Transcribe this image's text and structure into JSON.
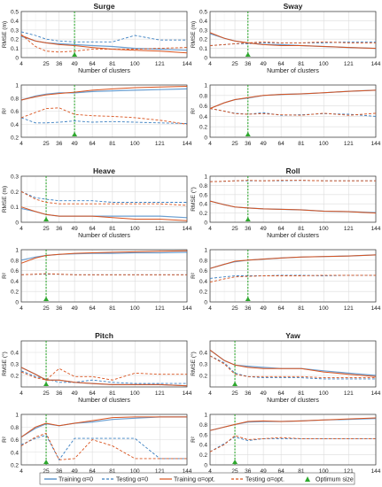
{
  "figure": {
    "xlabel": "Number of clusters",
    "xticks": [
      4,
      25,
      36,
      49,
      64,
      81,
      100,
      121,
      144
    ],
    "legend": [
      {
        "label": "Training α=0",
        "color": "#3a7fc1",
        "style": "solid"
      },
      {
        "label": "Testing α=0",
        "color": "#3a7fc1",
        "style": "dashed"
      },
      {
        "label": "Training α=opt.",
        "color": "#d9531e",
        "style": "solid"
      },
      {
        "label": "Testing α=opt.",
        "color": "#d9531e",
        "style": "dashed"
      },
      {
        "label": "Optimum size",
        "color": "#2ea82e",
        "style": "marker"
      }
    ],
    "colors": {
      "alpha0": "#3a7fc1",
      "alphaopt": "#d9531e",
      "optimum": "#2ea82e",
      "grid": "#e6e6e6"
    }
  },
  "chart_data": [
    {
      "type": "line",
      "title": "Surge",
      "ylabel": "RMSE (m)",
      "ylim": [
        0,
        0.5
      ],
      "yticks": [
        "0",
        "0.1",
        "0.2",
        "0.3",
        "0.4",
        "0.5"
      ],
      "optimum": 49,
      "x": [
        4,
        16,
        25,
        36,
        49,
        64,
        81,
        100,
        121,
        144
      ],
      "series": [
        {
          "name": "Training α=0",
          "values": [
            0.23,
            0.18,
            0.16,
            0.15,
            0.14,
            0.13,
            0.12,
            0.1,
            0.09,
            0.08
          ]
        },
        {
          "name": "Testing α=0",
          "values": [
            0.28,
            0.24,
            0.2,
            0.18,
            0.17,
            0.17,
            0.17,
            0.24,
            0.19,
            0.19
          ]
        },
        {
          "name": "Training α=opt.",
          "values": [
            0.24,
            0.18,
            0.16,
            0.14,
            0.13,
            0.11,
            0.09,
            0.08,
            0.07,
            0.05
          ]
        },
        {
          "name": "Testing α=opt.",
          "values": [
            0.25,
            0.12,
            0.07,
            0.06,
            0.07,
            0.09,
            0.09,
            0.09,
            0.1,
            0.11
          ]
        }
      ]
    },
    {
      "type": "line",
      "title": "Sway",
      "ylabel": "RMSE (m)",
      "ylim": [
        0,
        0.5
      ],
      "yticks": [
        "0",
        "0.1",
        "0.2",
        "0.3",
        "0.4",
        "0.5"
      ],
      "optimum": 36,
      "x": [
        4,
        16,
        25,
        36,
        49,
        64,
        81,
        100,
        121,
        144
      ],
      "series": [
        {
          "name": "Training α=0",
          "values": [
            0.26,
            0.21,
            0.18,
            0.16,
            0.14,
            0.14,
            0.13,
            0.12,
            0.11,
            0.1
          ]
        },
        {
          "name": "Testing α=0",
          "values": [
            0.13,
            0.14,
            0.15,
            0.15,
            0.16,
            0.16,
            0.16,
            0.16,
            0.17,
            0.17
          ]
        },
        {
          "name": "Training α=opt.",
          "values": [
            0.27,
            0.21,
            0.18,
            0.16,
            0.14,
            0.13,
            0.13,
            0.12,
            0.11,
            0.1
          ]
        },
        {
          "name": "Testing α=opt.",
          "values": [
            0.13,
            0.14,
            0.15,
            0.16,
            0.17,
            0.16,
            0.16,
            0.17,
            0.16,
            0.16
          ]
        }
      ]
    },
    {
      "type": "line",
      "title": "",
      "ylabel": "R²",
      "ylim": [
        0.2,
        1.0
      ],
      "yticks": [
        "0.2",
        "0.4",
        "0.6",
        "0.8",
        "1"
      ],
      "optimum": 49,
      "x": [
        4,
        16,
        25,
        36,
        49,
        64,
        81,
        100,
        121,
        144
      ],
      "series": [
        {
          "name": "Training α=0",
          "values": [
            0.77,
            0.83,
            0.86,
            0.88,
            0.88,
            0.9,
            0.91,
            0.92,
            0.93,
            0.94
          ]
        },
        {
          "name": "Testing α=0",
          "values": [
            0.5,
            0.42,
            0.42,
            0.43,
            0.45,
            0.43,
            0.44,
            0.43,
            0.42,
            0.41
          ]
        },
        {
          "name": "Training α=opt.",
          "values": [
            0.77,
            0.82,
            0.85,
            0.87,
            0.89,
            0.92,
            0.94,
            0.96,
            0.97,
            0.98
          ]
        },
        {
          "name": "Testing α=opt.",
          "values": [
            0.5,
            0.58,
            0.64,
            0.65,
            0.55,
            0.53,
            0.52,
            0.5,
            0.46,
            0.4
          ]
        }
      ]
    },
    {
      "type": "line",
      "title": "",
      "ylabel": "R²",
      "ylim": [
        0,
        1.0
      ],
      "yticks": [
        "0",
        "0.2",
        "0.4",
        "0.6",
        "0.8",
        "1"
      ],
      "optimum": 36,
      "x": [
        4,
        16,
        25,
        36,
        49,
        64,
        81,
        100,
        121,
        144
      ],
      "series": [
        {
          "name": "Training α=0",
          "values": [
            0.55,
            0.66,
            0.72,
            0.75,
            0.8,
            0.82,
            0.83,
            0.85,
            0.88,
            0.9
          ]
        },
        {
          "name": "Testing α=0",
          "values": [
            0.55,
            0.5,
            0.46,
            0.44,
            0.47,
            0.42,
            0.43,
            0.45,
            0.44,
            0.4
          ]
        },
        {
          "name": "Training α=opt.",
          "values": [
            0.55,
            0.66,
            0.72,
            0.76,
            0.8,
            0.82,
            0.83,
            0.85,
            0.88,
            0.9
          ]
        },
        {
          "name": "Testing α=opt.",
          "values": [
            0.55,
            0.5,
            0.45,
            0.44,
            0.45,
            0.43,
            0.42,
            0.46,
            0.42,
            0.46
          ]
        }
      ]
    },
    {
      "type": "line",
      "title": "Heave",
      "ylabel": "RMSE (m)",
      "ylim": [
        0,
        0.3
      ],
      "yticks": [
        "0",
        "0.1",
        "0.2",
        "0.3"
      ],
      "optimum": 25,
      "x": [
        4,
        16,
        25,
        36,
        49,
        64,
        81,
        100,
        121,
        144
      ],
      "series": [
        {
          "name": "Training α=0",
          "values": [
            0.09,
            0.07,
            0.05,
            0.04,
            0.04,
            0.04,
            0.04,
            0.04,
            0.04,
            0.03
          ]
        },
        {
          "name": "Testing α=0",
          "values": [
            0.2,
            0.16,
            0.15,
            0.14,
            0.14,
            0.14,
            0.13,
            0.13,
            0.13,
            0.13
          ]
        },
        {
          "name": "Training α=opt.",
          "values": [
            0.1,
            0.07,
            0.05,
            0.04,
            0.04,
            0.04,
            0.03,
            0.02,
            0.02,
            0.01
          ]
        },
        {
          "name": "Testing α=opt.",
          "values": [
            0.2,
            0.15,
            0.13,
            0.12,
            0.12,
            0.12,
            0.12,
            0.12,
            0.12,
            0.11
          ]
        }
      ]
    },
    {
      "type": "line",
      "title": "Roll",
      "ylabel": "RMSE (°)",
      "ylim": [
        0,
        1.0
      ],
      "yticks": [
        "0",
        "0.2",
        "0.4",
        "0.6",
        "0.8",
        "1"
      ],
      "optimum": 36,
      "x": [
        4,
        16,
        25,
        36,
        49,
        64,
        81,
        100,
        121,
        144
      ],
      "series": [
        {
          "name": "Training α=0",
          "values": [
            0.46,
            0.38,
            0.33,
            0.31,
            0.29,
            0.28,
            0.27,
            0.24,
            0.23,
            0.21
          ]
        },
        {
          "name": "Testing α=0",
          "values": [
            0.88,
            0.89,
            0.9,
            0.9,
            0.9,
            0.9,
            0.91,
            0.9,
            0.9,
            0.9
          ]
        },
        {
          "name": "Training α=opt.",
          "values": [
            0.46,
            0.38,
            0.33,
            0.31,
            0.29,
            0.28,
            0.27,
            0.24,
            0.23,
            0.2
          ]
        },
        {
          "name": "Testing α=opt.",
          "values": [
            0.88,
            0.89,
            0.9,
            0.91,
            0.9,
            0.91,
            0.91,
            0.9,
            0.9,
            0.9
          ]
        }
      ]
    },
    {
      "type": "line",
      "title": "",
      "ylabel": "R²",
      "ylim": [
        0,
        1.0
      ],
      "yticks": [
        "0",
        "0.2",
        "0.4",
        "0.6",
        "0.8",
        "1"
      ],
      "optimum": 25,
      "x": [
        4,
        16,
        25,
        36,
        49,
        64,
        81,
        100,
        121,
        144
      ],
      "series": [
        {
          "name": "Training α=0",
          "values": [
            0.8,
            0.86,
            0.89,
            0.91,
            0.92,
            0.93,
            0.93,
            0.94,
            0.94,
            0.95
          ]
        },
        {
          "name": "Testing α=0",
          "values": [
            0.52,
            0.53,
            0.53,
            0.53,
            0.52,
            0.52,
            0.52,
            0.52,
            0.52,
            0.52
          ]
        },
        {
          "name": "Training α=opt.",
          "values": [
            0.74,
            0.84,
            0.89,
            0.91,
            0.93,
            0.94,
            0.95,
            0.96,
            0.97,
            0.98
          ]
        },
        {
          "name": "Testing α=opt.",
          "values": [
            0.52,
            0.53,
            0.54,
            0.53,
            0.52,
            0.52,
            0.52,
            0.52,
            0.52,
            0.52
          ]
        }
      ]
    },
    {
      "type": "line",
      "title": "",
      "ylabel": "R²",
      "ylim": [
        0,
        1.0
      ],
      "yticks": [
        "0",
        "0.2",
        "0.4",
        "0.6",
        "0.8",
        "1"
      ],
      "optimum": 36,
      "x": [
        4,
        16,
        25,
        36,
        49,
        64,
        81,
        100,
        121,
        144
      ],
      "series": [
        {
          "name": "Training α=0",
          "values": [
            0.64,
            0.72,
            0.77,
            0.8,
            0.82,
            0.84,
            0.86,
            0.87,
            0.88,
            0.9
          ]
        },
        {
          "name": "Testing α=0",
          "values": [
            0.45,
            0.48,
            0.5,
            0.5,
            0.5,
            0.51,
            0.51,
            0.5,
            0.51,
            0.51
          ]
        },
        {
          "name": "Training α=opt.",
          "values": [
            0.64,
            0.72,
            0.78,
            0.8,
            0.82,
            0.84,
            0.86,
            0.87,
            0.88,
            0.9
          ]
        },
        {
          "name": "Testing α=opt.",
          "values": [
            0.38,
            0.44,
            0.48,
            0.49,
            0.5,
            0.5,
            0.5,
            0.51,
            0.51,
            0.51
          ]
        }
      ]
    },
    {
      "type": "line",
      "title": "Pitch",
      "ylabel": "RMSE (°)",
      "ylim": [
        0.1,
        0.5
      ],
      "yticks": [
        "0.2",
        "0.3",
        "0.4"
      ],
      "optimum": 25,
      "x": [
        4,
        16,
        25,
        36,
        49,
        64,
        81,
        100,
        121,
        144
      ],
      "series": [
        {
          "name": "Training α=0",
          "values": [
            0.27,
            0.21,
            0.16,
            0.16,
            0.14,
            0.13,
            0.12,
            0.12,
            0.12,
            0.11
          ]
        },
        {
          "name": "Testing α=0",
          "values": [
            0.24,
            0.19,
            0.17,
            0.14,
            0.14,
            0.16,
            0.14,
            0.13,
            0.13,
            0.13
          ]
        },
        {
          "name": "Training α=opt.",
          "values": [
            0.27,
            0.21,
            0.16,
            0.16,
            0.14,
            0.13,
            0.12,
            0.12,
            0.12,
            0.11
          ]
        },
        {
          "name": "Testing α=opt.",
          "values": [
            0.23,
            0.18,
            0.16,
            0.26,
            0.19,
            0.19,
            0.16,
            0.22,
            0.21,
            0.21
          ]
        }
      ]
    },
    {
      "type": "line",
      "title": "Yaw",
      "ylabel": "RMSE (°)",
      "ylim": [
        0.1,
        0.5
      ],
      "yticks": [
        "0.2",
        "0.3",
        "0.4"
      ],
      "optimum": 25,
      "x": [
        4,
        16,
        25,
        36,
        49,
        64,
        81,
        100,
        121,
        144
      ],
      "series": [
        {
          "name": "Training α=0",
          "values": [
            0.42,
            0.33,
            0.29,
            0.28,
            0.27,
            0.26,
            0.26,
            0.24,
            0.22,
            0.2
          ]
        },
        {
          "name": "Testing α=0",
          "values": [
            0.37,
            0.31,
            0.22,
            0.19,
            0.18,
            0.18,
            0.18,
            0.17,
            0.17,
            0.17
          ]
        },
        {
          "name": "Training α=opt.",
          "values": [
            0.42,
            0.33,
            0.29,
            0.27,
            0.26,
            0.26,
            0.26,
            0.23,
            0.21,
            0.19
          ]
        },
        {
          "name": "Testing α=opt.",
          "values": [
            0.37,
            0.3,
            0.21,
            0.19,
            0.19,
            0.19,
            0.19,
            0.18,
            0.18,
            0.18
          ]
        }
      ]
    },
    {
      "type": "line",
      "title": "",
      "ylabel": "R²",
      "ylim": [
        0.2,
        1.0
      ],
      "yticks": [
        "0.2",
        "0.4",
        "0.6",
        "0.8",
        "1"
      ],
      "optimum": 25,
      "x": [
        4,
        16,
        25,
        36,
        49,
        64,
        81,
        100,
        121,
        144
      ],
      "series": [
        {
          "name": "Training α=0",
          "values": [
            0.64,
            0.78,
            0.85,
            0.82,
            0.86,
            0.88,
            0.92,
            0.94,
            0.96,
            0.96
          ]
        },
        {
          "name": "Testing α=0",
          "values": [
            0.52,
            0.62,
            0.67,
            0.28,
            0.62,
            0.62,
            0.62,
            0.62,
            0.3,
            0.3
          ]
        },
        {
          "name": "Training α=opt.",
          "values": [
            0.64,
            0.8,
            0.86,
            0.82,
            0.86,
            0.9,
            0.95,
            0.96,
            0.96,
            0.96
          ]
        },
        {
          "name": "Testing α=opt.",
          "values": [
            0.5,
            0.64,
            0.7,
            0.28,
            0.3,
            0.6,
            0.5,
            0.3,
            0.3,
            0.3
          ]
        }
      ]
    },
    {
      "type": "line",
      "title": "",
      "ylabel": "R²",
      "ylim": [
        0,
        1.0
      ],
      "yticks": [
        "0",
        "0.2",
        "0.4",
        "0.6",
        "0.8",
        "1"
      ],
      "optimum": 25,
      "x": [
        4,
        16,
        25,
        36,
        49,
        64,
        81,
        100,
        121,
        144
      ],
      "series": [
        {
          "name": "Training α=0",
          "values": [
            0.68,
            0.75,
            0.8,
            0.85,
            0.86,
            0.86,
            0.87,
            0.89,
            0.9,
            0.92
          ]
        },
        {
          "name": "Testing α=0",
          "values": [
            0.26,
            0.42,
            0.55,
            0.48,
            0.52,
            0.52,
            0.52,
            0.52,
            0.52,
            0.52
          ]
        },
        {
          "name": "Training α=opt.",
          "values": [
            0.68,
            0.75,
            0.8,
            0.86,
            0.87,
            0.86,
            0.87,
            0.89,
            0.91,
            0.93
          ]
        },
        {
          "name": "Testing α=opt.",
          "values": [
            0.26,
            0.4,
            0.58,
            0.5,
            0.52,
            0.54,
            0.52,
            0.52,
            0.52,
            0.52
          ]
        }
      ]
    }
  ]
}
